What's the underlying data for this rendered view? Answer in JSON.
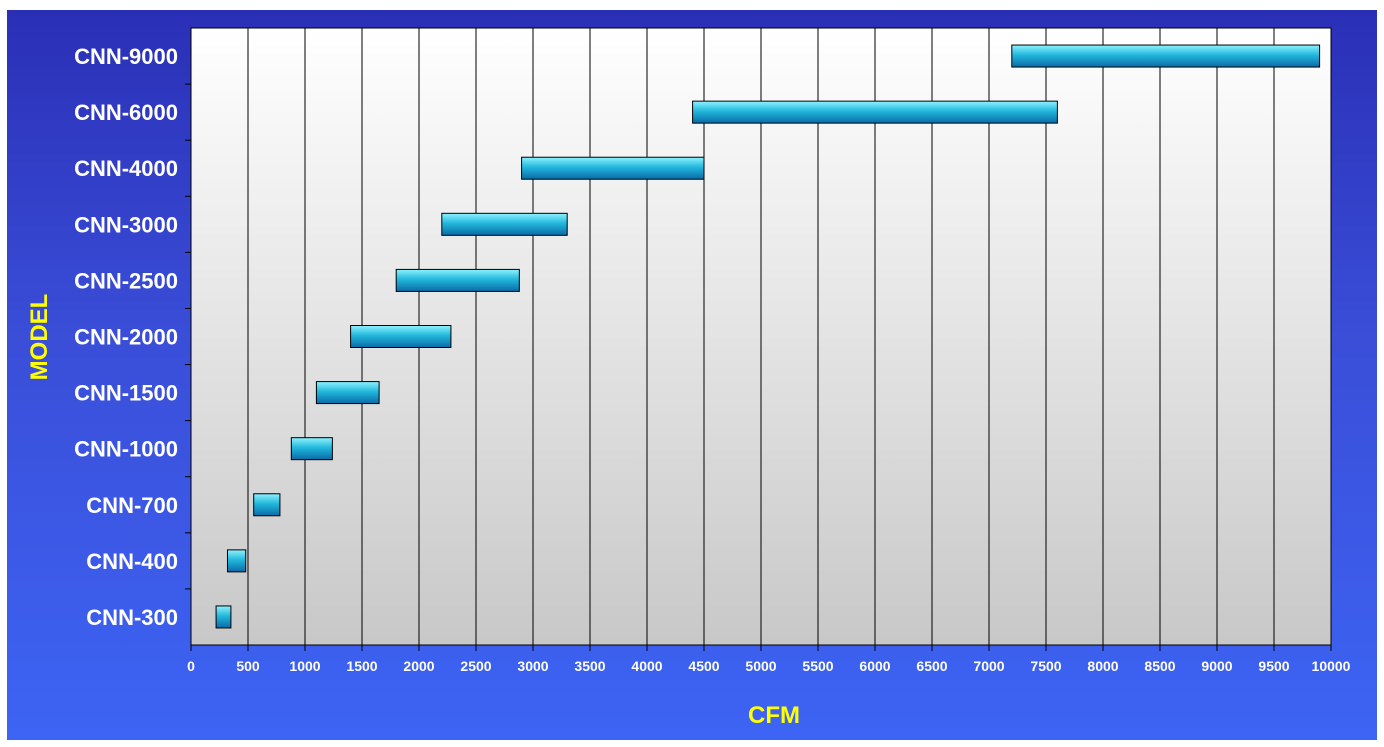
{
  "chart_data": {
    "type": "bar",
    "orientation": "horizontal-range",
    "categories": [
      "CNN-300",
      "CNN-400",
      "CNN-700",
      "CNN-1000",
      "CNN-1500",
      "CNN-2000",
      "CNN-2500",
      "CNN-3000",
      "CNN-4000",
      "CNN-6000",
      "CNN-9000"
    ],
    "series": [
      {
        "ranges": [
          [
            220,
            350
          ],
          [
            320,
            480
          ],
          [
            550,
            780
          ],
          [
            880,
            1240
          ],
          [
            1100,
            1650
          ],
          [
            1400,
            2280
          ],
          [
            1800,
            2880
          ],
          [
            2200,
            3300
          ],
          [
            2900,
            4500
          ],
          [
            4400,
            7600
          ],
          [
            7200,
            9900
          ]
        ]
      }
    ],
    "xlabel": "CFM",
    "ylabel": "MODEL",
    "xlim": [
      0,
      10000
    ],
    "xticks": [
      0,
      500,
      1000,
      1500,
      2000,
      2500,
      3000,
      3500,
      4000,
      4500,
      5000,
      5500,
      6000,
      6500,
      7000,
      7500,
      8000,
      8500,
      9000,
      9500,
      10000
    ],
    "grid": "vertical",
    "legend": "none",
    "colors": {
      "background_top": "#2a2fb6",
      "background_bottom": "#3d64f4",
      "plot_top": "#ffffff",
      "plot_bottom": "#c8c8c8",
      "bar_light": "#8ff2ff",
      "bar_mid": "#22b8dc",
      "bar_dark": "#0a6aa8",
      "text": "#ffffff",
      "axis_title": "#ffff00"
    }
  }
}
